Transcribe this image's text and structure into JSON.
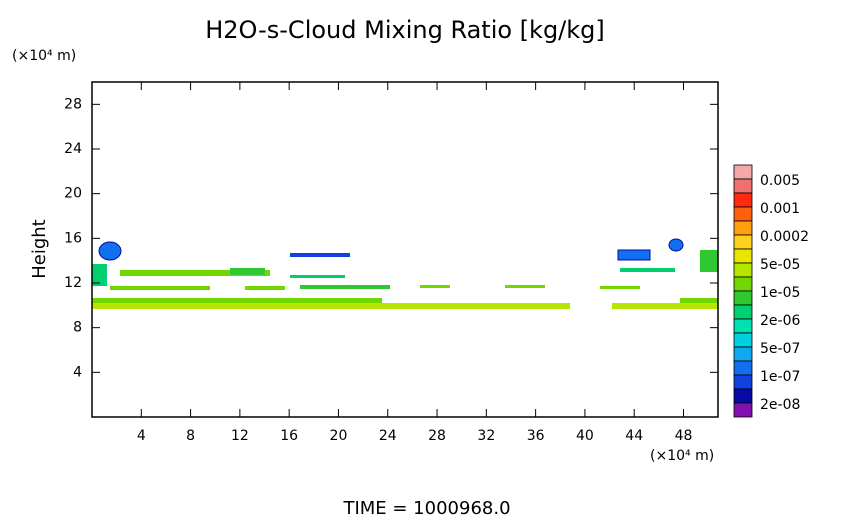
{
  "chart_data": {
    "type": "contour",
    "title": "H2O-s-Cloud Mixing Ratio [kg/kg]",
    "y_label": "Height",
    "y_unit": "(×10⁴ m)",
    "x_unit": "(×10⁴ m)",
    "footer": "TIME = 1000968.0",
    "xlim": [
      0,
      50.8
    ],
    "xticks": [
      4,
      8,
      12,
      16,
      20,
      24,
      28,
      32,
      36,
      40,
      44,
      48
    ],
    "ylim": [
      0,
      30
    ],
    "yticks": [
      4,
      8,
      12,
      16,
      20,
      24,
      28
    ],
    "colorbar": {
      "colors": [
        "#f4a8a8",
        "#f07070",
        "#ff2a10",
        "#ff6010",
        "#ffa010",
        "#ffd020",
        "#e6e600",
        "#b4e600",
        "#70d800",
        "#30c830",
        "#00d070",
        "#00e0b0",
        "#00d0e0",
        "#10a8f0",
        "#1070f0",
        "#1040e0",
        "#0808a8",
        "#8010b0"
      ],
      "labels": [
        0.005,
        0.001,
        0.0002,
        {
          "value": 5e-05,
          "label": "5e-05"
        },
        {
          "value": 1e-05,
          "label": "1e-05"
        },
        {
          "value": 2e-06,
          "label": "2e-06"
        },
        {
          "value": 5e-07,
          "label": "5e-07"
        },
        {
          "value": 1e-07,
          "label": "1e-07"
        },
        {
          "value": 2e-08,
          "label": "2e-08"
        }
      ]
    }
  }
}
